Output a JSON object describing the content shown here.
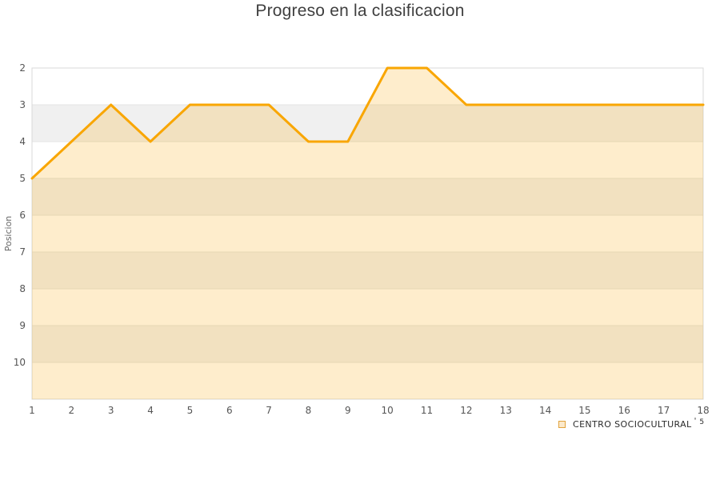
{
  "page": {
    "title": "Progreso en la clasificacion"
  },
  "chart_data": {
    "type": "area",
    "title": "Progreso en la clasificacion",
    "xlabel": "",
    "ylabel": "Posicion",
    "x": [
      1,
      2,
      3,
      4,
      5,
      6,
      7,
      8,
      9,
      10,
      11,
      12,
      13,
      14,
      15,
      16,
      17,
      18
    ],
    "series": [
      {
        "name": "CENTRO SOCIOCULTURAL",
        "values": [
          5,
          4,
          3,
          4,
          3,
          3,
          3,
          4,
          4,
          2,
          2,
          3,
          3,
          3,
          3,
          3,
          3,
          3
        ]
      }
    ],
    "y_axis": {
      "min": 2,
      "max": 11,
      "ticks": [
        2,
        3,
        4,
        5,
        6,
        7,
        8,
        9,
        10
      ],
      "inverted": true,
      "gray_bands": [
        3,
        5,
        7,
        9
      ]
    },
    "x_axis": {
      "ticks": [
        1,
        2,
        3,
        4,
        5,
        6,
        7,
        8,
        9,
        10,
        11,
        12,
        13,
        14,
        15,
        16,
        17,
        18
      ]
    },
    "grid": "horizontal",
    "legend": {
      "position": "bottom-right",
      "label": "CENTRO SOCIOCULTURAL",
      "apostrophe": "'",
      "superscript": "5"
    },
    "colors": {
      "line": "#F9A602",
      "fill": "rgba(249,166,2,0.20)",
      "band_gray": "#F0F0F0",
      "grid_line": "#E3E3E3",
      "plot_border": "#D9D9D9",
      "tick_text": "#555555",
      "axis_title_text": "#666666",
      "title_text": "#3F3F3F",
      "legend_text": "#2B2B2B"
    }
  }
}
